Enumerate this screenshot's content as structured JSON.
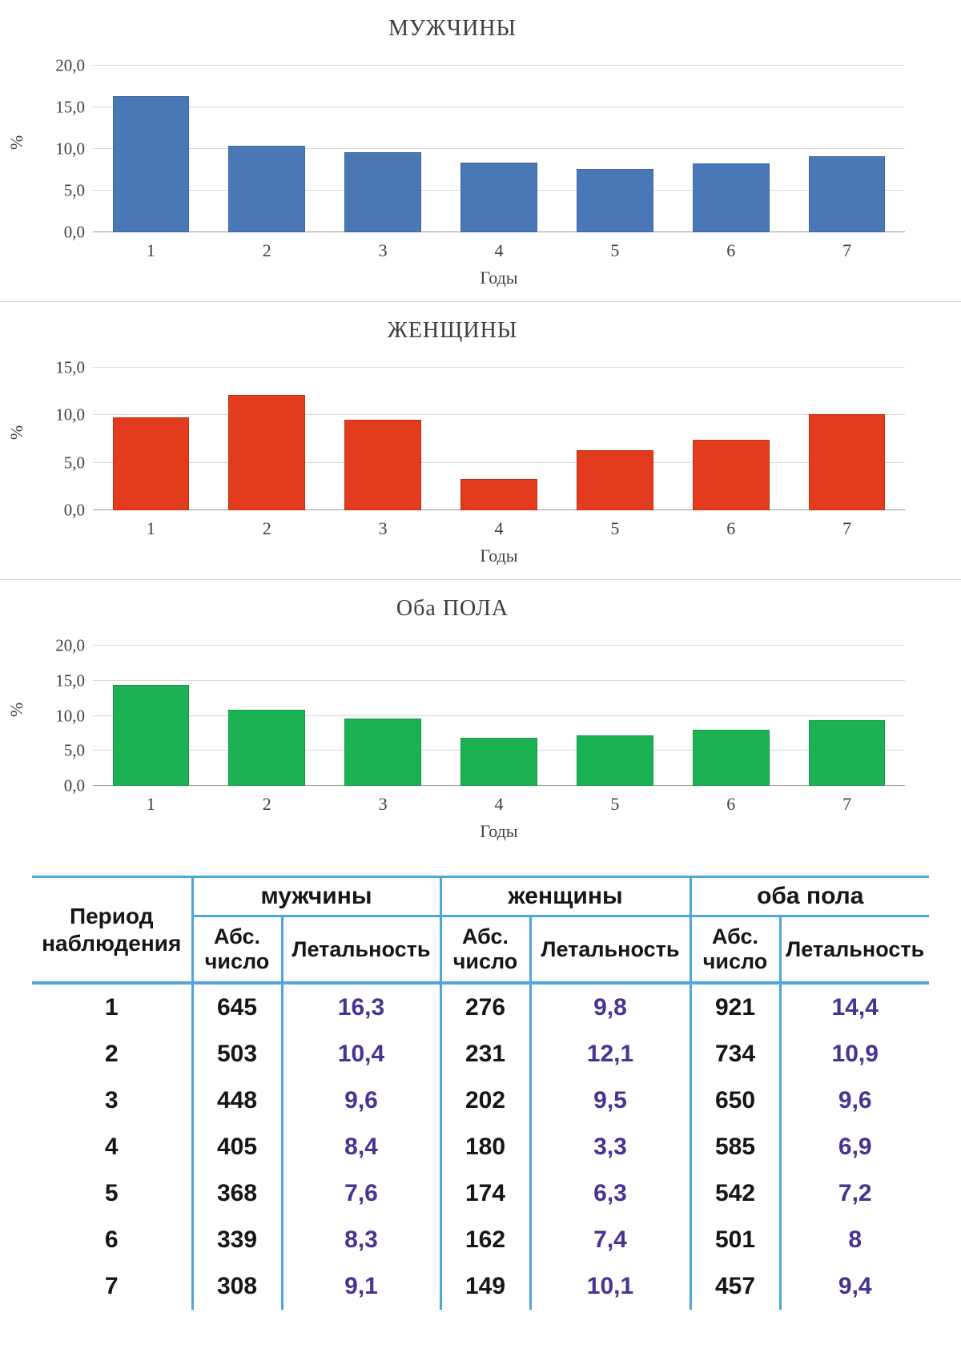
{
  "chart_data": [
    {
      "id": "men",
      "type": "bar",
      "title": "МУЖЧИНЫ",
      "ylabel": "%",
      "xlabel": "Годы",
      "categories": [
        "1",
        "2",
        "3",
        "4",
        "5",
        "6",
        "7"
      ],
      "values": [
        16.3,
        10.4,
        9.6,
        8.4,
        7.6,
        8.3,
        9.1
      ],
      "ylim": [
        0,
        20
      ],
      "yticks": [
        {
          "value": 0,
          "label": "0,0"
        },
        {
          "value": 5,
          "label": "5,0"
        },
        {
          "value": 10,
          "label": "10,0"
        },
        {
          "value": 15,
          "label": "15,0"
        },
        {
          "value": 20,
          "label": "20,0"
        }
      ],
      "grid": true,
      "legend": "none",
      "bar_color": "#4A77B5",
      "bar_border_color": "#3E66A3"
    },
    {
      "id": "women",
      "type": "bar",
      "title": "ЖЕНЩИНЫ",
      "ylabel": "%",
      "xlabel": "Годы",
      "categories": [
        "1",
        "2",
        "3",
        "4",
        "5",
        "6",
        "7"
      ],
      "values": [
        9.8,
        12.1,
        9.5,
        3.3,
        6.3,
        7.4,
        10.1
      ],
      "ylim": [
        0,
        15
      ],
      "yticks": [
        {
          "value": 0,
          "label": "0,0"
        },
        {
          "value": 5,
          "label": "5,0"
        },
        {
          "value": 10,
          "label": "10,0"
        },
        {
          "value": 15,
          "label": "15,0"
        }
      ],
      "grid": true,
      "legend": "none",
      "bar_color": "#E23B1D",
      "bar_border_color": "#C4320F"
    },
    {
      "id": "both",
      "type": "bar",
      "title": "Оба ПОЛА",
      "ylabel": "%",
      "xlabel": "Годы",
      "categories": [
        "1",
        "2",
        "3",
        "4",
        "5",
        "6",
        "7"
      ],
      "values": [
        14.4,
        10.9,
        9.6,
        6.9,
        7.2,
        8,
        9.4
      ],
      "ylim": [
        0,
        20
      ],
      "yticks": [
        {
          "value": 0,
          "label": "0,0"
        },
        {
          "value": 5,
          "label": "5,0"
        },
        {
          "value": 10,
          "label": "10,0"
        },
        {
          "value": 15,
          "label": "15,0"
        },
        {
          "value": 20,
          "label": "20,0"
        }
      ],
      "grid": true,
      "legend": "none",
      "bar_color": "#1CB254",
      "bar_border_color": "#119A43"
    }
  ],
  "table": {
    "period_header": "Период наблюдения",
    "groups": [
      {
        "label": "мужчины",
        "columns": [
          "Абс. число",
          "Летальность"
        ]
      },
      {
        "label": "женщины",
        "columns": [
          "Абс. число",
          "Летальность"
        ]
      },
      {
        "label": "оба пола",
        "columns": [
          "Абс. число",
          "Летальность"
        ]
      }
    ],
    "rows": [
      [
        "1",
        "645",
        "16,3",
        "276",
        "9,8",
        "921",
        "14,4"
      ],
      [
        "2",
        "503",
        "10,4",
        "231",
        "12,1",
        "734",
        "10,9"
      ],
      [
        "3",
        "448",
        "9,6",
        "202",
        "9,5",
        "650",
        "9,6"
      ],
      [
        "4",
        "405",
        "8,4",
        "180",
        "3,3",
        "585",
        "6,9"
      ],
      [
        "5",
        "368",
        "7,6",
        "174",
        "6,3",
        "542",
        "7,2"
      ],
      [
        "6",
        "339",
        "8,3",
        "162",
        "7,4",
        "501",
        "8"
      ],
      [
        "7",
        "308",
        "9,1",
        "149",
        "10,1",
        "457",
        "9,4"
      ]
    ],
    "accent_line_color": "#4DA6DC",
    "lethality_text_color": "#4A3192"
  }
}
